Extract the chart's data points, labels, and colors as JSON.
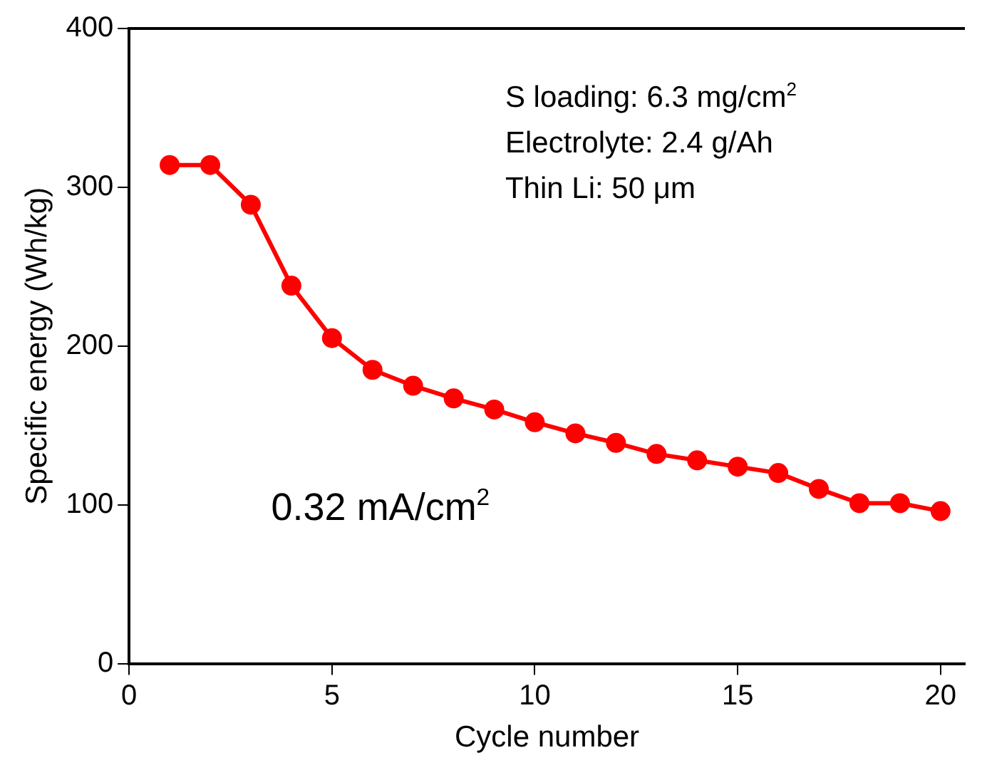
{
  "chart_data": {
    "type": "line",
    "xlabel": "Cycle number",
    "ylabel": "Specific energy (Wh/kg)",
    "x": [
      1,
      2,
      3,
      4,
      5,
      6,
      7,
      8,
      9,
      10,
      11,
      12,
      13,
      14,
      15,
      16,
      17,
      18,
      19,
      20
    ],
    "series": [
      {
        "color": "#ff0000",
        "values": [
          314,
          314,
          289,
          238,
          205,
          185,
          175,
          167,
          160,
          152,
          145,
          139,
          132,
          128,
          124,
          120,
          110,
          101,
          101,
          96
        ]
      }
    ],
    "xlim": [
      0,
      20.6
    ],
    "xticks": [
      0,
      5,
      10,
      15,
      20
    ],
    "ylim": [
      0,
      400
    ],
    "yticks": [
      0,
      100,
      200,
      300,
      400
    ],
    "grid": false,
    "legend": false,
    "marker": "circle",
    "line_style": "solid",
    "annotations": [
      "S loading: 6.3 mg/cm$^{2}$",
      "Electrolyte: 2.4 g/Ah",
      "Thin Li: 50 μm",
      "0.32 mA/cm$^{2}$"
    ]
  }
}
